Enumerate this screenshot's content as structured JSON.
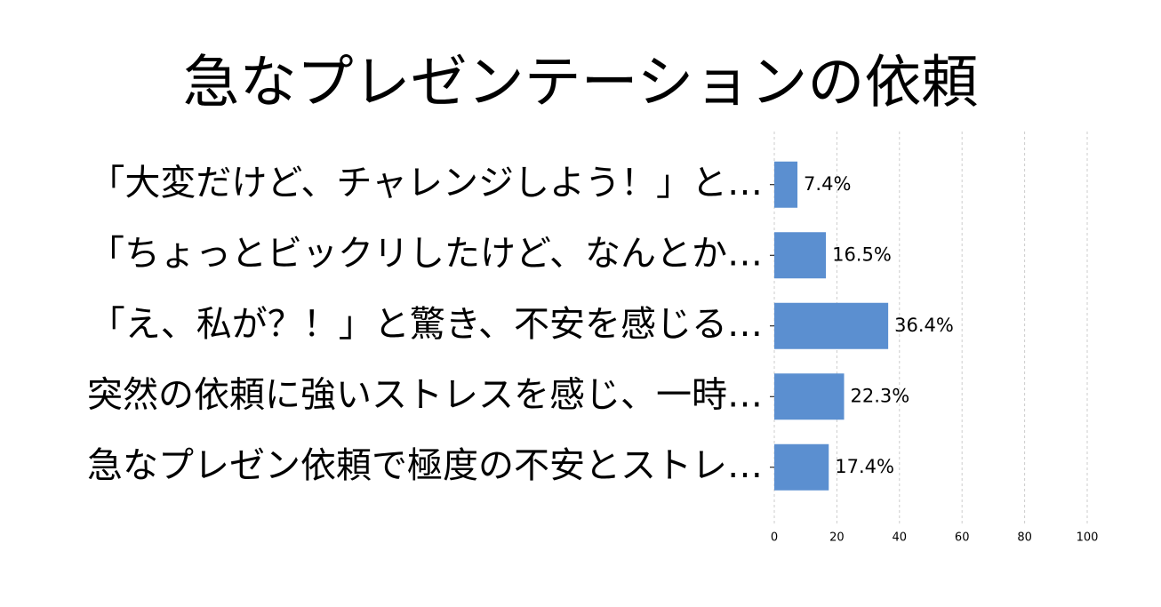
{
  "chart_data": {
    "type": "barh",
    "title": "急なプレゼンテーションの依頼",
    "categories": [
      "「大変だけど、チャレンジしよう！」と…",
      "「ちょっとビックリしたけど、なんとか…",
      "「え、私が？！」と驚き、不安を感じる…",
      "突然の依頼に強いストレスを感じ、一時…",
      "急なプレゼン依頼で極度の不安とストレ…"
    ],
    "values": [
      7.4,
      16.5,
      36.4,
      22.3,
      17.4
    ],
    "value_labels": [
      "7.4%",
      "16.5%",
      "36.4%",
      "22.3%",
      "17.4%"
    ],
    "color": "#5b8fd0",
    "xlim": [
      0,
      100
    ],
    "xticks": [
      0,
      20,
      40,
      60,
      80,
      100
    ],
    "grid": true
  }
}
